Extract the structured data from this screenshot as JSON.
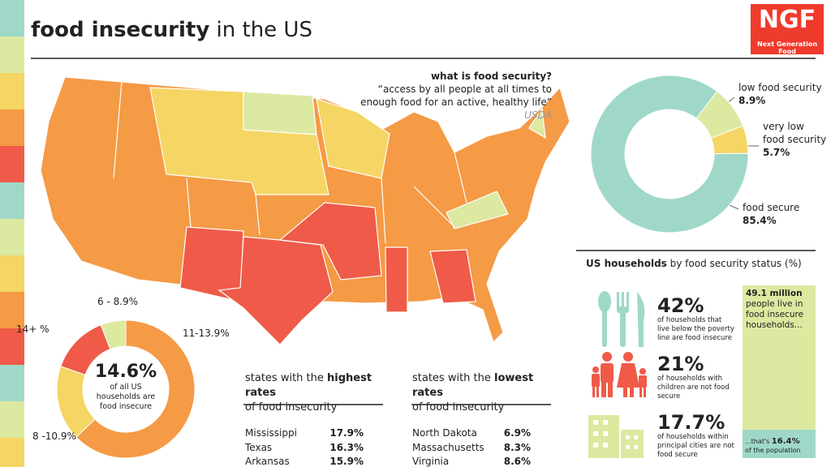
{
  "header": {
    "title_bold": "food insecurity",
    "title_rest": "in the US",
    "logo": "NGF",
    "logo_sub": "Next Generation Food"
  },
  "definition": {
    "heading": "what is food security?",
    "quote": "“access by all people at all times to enough food for an active, healthy life”",
    "source": "USDA"
  },
  "status_donut": {
    "segments": [
      {
        "name": "low food security",
        "value": 8.9,
        "label": "8.9%",
        "color": "#dce9a0"
      },
      {
        "name": "very low food security",
        "value": 5.7,
        "label": "5.7%",
        "color": "#f5d564"
      },
      {
        "name": "food secure",
        "value": 85.4,
        "label": "85.4%",
        "color": "#9fd8c9"
      }
    ]
  },
  "state_donut": {
    "center_value": "14.6%",
    "center_text": "of all US households are food insecure",
    "segments": [
      {
        "name": "11-13.9%",
        "value": 32,
        "color": "#f59a45"
      },
      {
        "name": "8 -10.9%",
        "value": 9,
        "color": "#f5d564"
      },
      {
        "name": "14+ %",
        "value": 7,
        "color": "#ef5b48"
      },
      {
        "name": "6 - 8.9%",
        "value": 3,
        "color": "#dce9a0"
      }
    ]
  },
  "highest": {
    "title_pre": "states with the",
    "title_bold": "highest rates",
    "title_post": "of food insecurity",
    "rows": [
      [
        "Mississippi",
        "17.9%"
      ],
      [
        "Texas",
        "16.3%"
      ],
      [
        "Arkansas",
        "15.9%"
      ]
    ]
  },
  "lowest": {
    "title_pre": "states with the",
    "title_bold": "lowest rates",
    "title_post": "of food insecurity",
    "rows": [
      [
        "North Dakota",
        "6.9%"
      ],
      [
        "Massachusetts",
        "8.3%"
      ],
      [
        "Virginia",
        "8.6%"
      ]
    ]
  },
  "households": {
    "title_bold": "US households",
    "title_rest": "by food security status (%)",
    "stats": [
      {
        "value": "42%",
        "text": "of households that live below the poverty line are food insecure"
      },
      {
        "value": "21%",
        "text": "of households with children are not food secure"
      },
      {
        "value": "17.7%",
        "text": "of households within principal cities are not food secure"
      }
    ],
    "bar": {
      "headline": "49.1 million",
      "text": "people live in food insecure households...",
      "note_pre": "...that's",
      "share": 16.4,
      "share_label": "16.4%",
      "note_post": "of the population"
    }
  }
}
